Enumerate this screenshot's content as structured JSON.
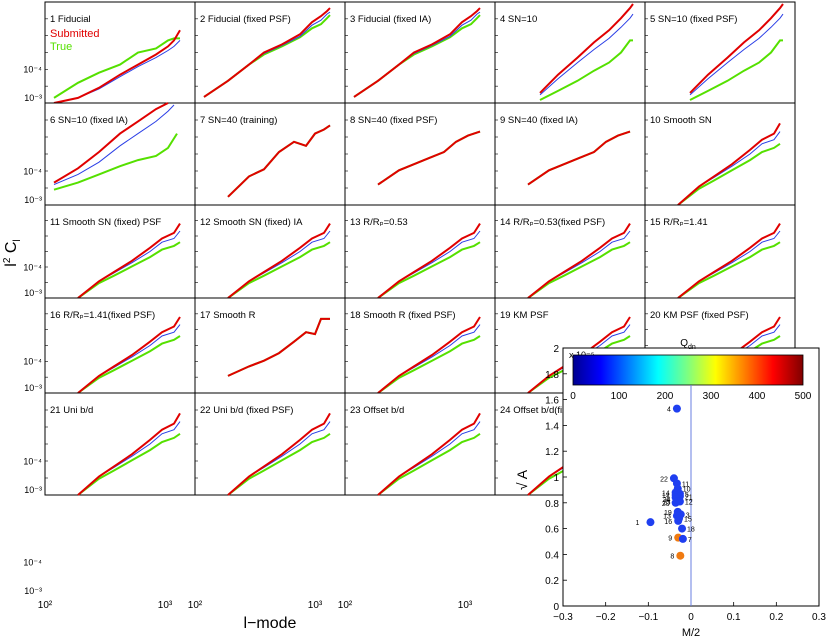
{
  "figure": {
    "ylabel": "l² C_l",
    "xlabel": "l−mode"
  },
  "colors": {
    "submitted": "#e00000",
    "true": "#55e000",
    "fiducial_blue": "#2a3ee6",
    "scatter_point_blue": "#1f3ff0",
    "scatter_point_orange": "#f07a10",
    "vline": "#6a7fe0"
  },
  "chart_data": [
    {
      "type": "line",
      "title": "Power spectrum panel grid (24 panels)",
      "legend": [
        {
          "label": "Submitted",
          "color": "#e00000"
        },
        {
          "label": "True",
          "color": "#55e000"
        }
      ],
      "xscale": "log",
      "yscale": "log",
      "xlim": [
        100,
        2000
      ],
      "ylim": [
        0.001,
        1
      ],
      "panel_y_tick_labels": [
        "10⁻³",
        "10⁻⁴"
      ],
      "x_tick_labels": [
        "10²",
        "10³"
      ],
      "panels": [
        {
          "label": "1 Fiducial"
        },
        {
          "label": "2 Fiducial (fixed PSF)"
        },
        {
          "label": "3 Fiducial (fixed IA)"
        },
        {
          "label": "4 SN=10"
        },
        {
          "label": "5 SN=10 (fixed PSF)"
        },
        {
          "label": "6 SN=10 (fixed IA)"
        },
        {
          "label": "7 SN=40 (training)"
        },
        {
          "label": "8 SN=40 (fixed PSF)"
        },
        {
          "label": "9 SN=40 (fixed IA)"
        },
        {
          "label": "10 Smooth SN"
        },
        {
          "label": "11 Smooth SN (fixed) PSF"
        },
        {
          "label": "12 Smooth SN (fixed) IA"
        },
        {
          "label": "13 R/Rₚ=0.53"
        },
        {
          "label": "14 R/Rₚ=0.53(fixed PSF)"
        },
        {
          "label": "15 R/Rₚ=1.41"
        },
        {
          "label": "16 R/Rₚ=1.41(fixed PSF)"
        },
        {
          "label": "17 Smooth R"
        },
        {
          "label": "18 Smooth R (fixed PSF)"
        },
        {
          "label": "19 KM PSF"
        },
        {
          "label": "20 KM PSF (fixed PSF)"
        },
        {
          "label": "21 Uni b/d"
        },
        {
          "label": "22 Uni b/d (fixed PSF)"
        },
        {
          "label": "23 Offset b/d"
        },
        {
          "label": "24 Offset b/d(fixed PSF)"
        }
      ]
    },
    {
      "type": "scatter",
      "xlabel": "M/2",
      "ylabel": "√ A",
      "xlim": [
        -0.3,
        0.3
      ],
      "ylim": [
        0,
        2
      ],
      "y_exponent_label": "x 10⁻⁵",
      "x_ticks": [
        "−0.3",
        "−0.2",
        "−0.1",
        "0",
        "0.1",
        "0.2",
        "0.3"
      ],
      "y_ticks": [
        "0",
        "0.2",
        "0.4",
        "0.6",
        "0.8",
        "1",
        "1.2",
        "1.4",
        "1.6",
        "1.8",
        "2"
      ],
      "colorbar": {
        "label": "Q_dn",
        "range": [
          0,
          500
        ],
        "ticks": [
          "0",
          "100",
          "200",
          "300",
          "400",
          "500"
        ]
      },
      "points": [
        {
          "label": "4",
          "x": -0.033,
          "y": 1.53,
          "color": "#1f3ff0"
        },
        {
          "label": "22",
          "x": -0.04,
          "y": 0.99,
          "color": "#1f3ff0"
        },
        {
          "label": "11",
          "x": -0.033,
          "y": 0.95,
          "color": "#1f3ff0"
        },
        {
          "label": "10",
          "x": -0.031,
          "y": 0.91,
          "color": "#1f3ff0"
        },
        {
          "label": "14",
          "x": -0.036,
          "y": 0.88,
          "color": "#1f3ff0"
        },
        {
          "label": "5",
          "x": -0.026,
          "y": 0.87,
          "color": "#1f3ff0"
        },
        {
          "label": "17",
          "x": -0.036,
          "y": 0.86,
          "color": "#1f3ff0"
        },
        {
          "label": "21",
          "x": -0.026,
          "y": 0.85,
          "color": "#1f3ff0"
        },
        {
          "label": "2",
          "x": -0.036,
          "y": 0.84,
          "color": "#1f3ff0"
        },
        {
          "label": "24",
          "x": -0.034,
          "y": 0.83,
          "color": "#1f3ff0"
        },
        {
          "label": "23",
          "x": -0.034,
          "y": 0.81,
          "color": "#1f3ff0"
        },
        {
          "label": "12",
          "x": -0.026,
          "y": 0.81,
          "color": "#1f3ff0"
        },
        {
          "label": "20",
          "x": -0.036,
          "y": 0.8,
          "color": "#1f3ff0"
        },
        {
          "label": "19",
          "x": -0.031,
          "y": 0.73,
          "color": "#1f3ff0"
        },
        {
          "label": "3",
          "x": -0.024,
          "y": 0.71,
          "color": "#1f3ff0"
        },
        {
          "label": "13",
          "x": -0.033,
          "y": 0.7,
          "color": "#1f3ff0"
        },
        {
          "label": "15",
          "x": -0.028,
          "y": 0.68,
          "color": "#1f3ff0"
        },
        {
          "label": "16",
          "x": -0.03,
          "y": 0.66,
          "color": "#1f3ff0"
        },
        {
          "label": "18",
          "x": -0.021,
          "y": 0.6,
          "color": "#1f3ff0"
        },
        {
          "label": "1",
          "x": -0.095,
          "y": 0.65,
          "color": "#1f3ff0"
        },
        {
          "label": "9",
          "x": -0.03,
          "y": 0.53,
          "color": "#f07a10"
        },
        {
          "label": "7",
          "x": -0.019,
          "y": 0.52,
          "color": "#1f3ff0"
        },
        {
          "label": "8",
          "x": -0.025,
          "y": 0.39,
          "color": "#f07a10"
        }
      ],
      "vline_x": 0
    }
  ]
}
